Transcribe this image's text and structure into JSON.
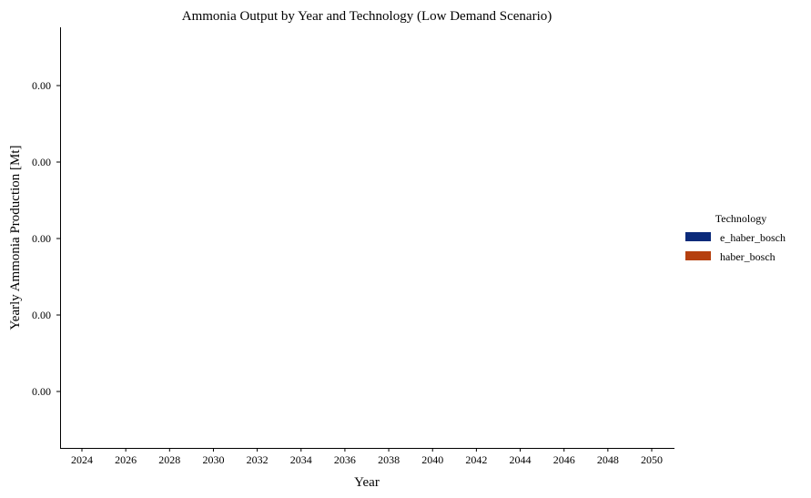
{
  "chart_data": {
    "type": "bar",
    "stacked": true,
    "title": "Ammonia Output by Year and Technology (Low Demand Scenario)",
    "xlabel": "Year",
    "ylabel": "Yearly Ammonia Production [Mt]",
    "categories": [
      "2024",
      "2026",
      "2028",
      "2030",
      "2032",
      "2034",
      "2036",
      "2038",
      "2040",
      "2042",
      "2044",
      "2046",
      "2048",
      "2050"
    ],
    "y_tick_labels": [
      "0.00",
      "0.00",
      "0.00",
      "0.00",
      "0.00"
    ],
    "ylim": [
      -0.00075,
      0.00075
    ],
    "grid": false,
    "legend": {
      "title": "Technology",
      "placement": "right",
      "entries": [
        "e_haber_bosch",
        "haber_bosch"
      ]
    },
    "series": [
      {
        "name": "e_haber_bosch",
        "color": "#0b2a7a",
        "values": [
          0,
          0,
          0,
          0,
          0,
          0,
          0,
          0,
          0,
          0,
          0,
          0,
          0,
          0
        ]
      },
      {
        "name": "haber_bosch",
        "color": "#b5400f",
        "values": [
          0,
          0,
          0,
          0,
          0,
          0,
          0,
          0,
          0,
          0,
          0,
          0,
          0,
          0
        ]
      }
    ]
  }
}
